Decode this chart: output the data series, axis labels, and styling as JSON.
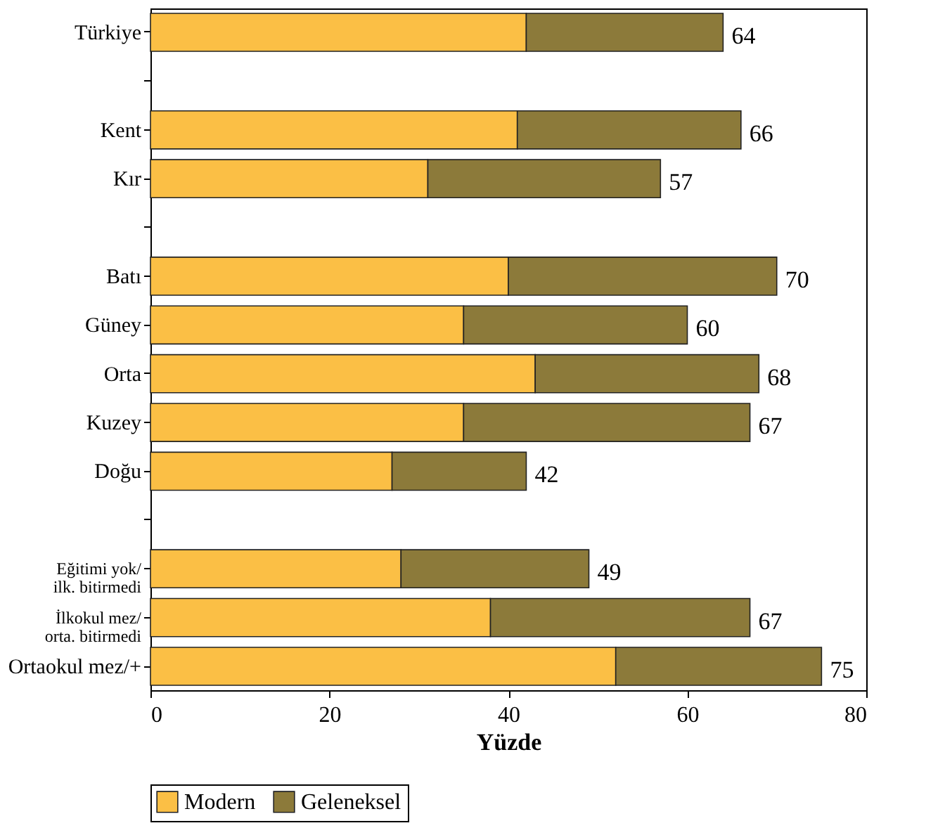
{
  "chart_data": {
    "type": "bar",
    "orientation": "horizontal",
    "stacked": true,
    "xlabel": "Yüzde",
    "categories": [
      "Türkiye",
      null,
      "Kent",
      "Kır",
      null,
      "Batı",
      "Güney",
      "Orta",
      "Kuzey",
      "Doğu",
      null,
      "Eğitimi yok/\nilk. bitirmedi",
      "İlkokul mez/\norta. bitirmedi",
      "Ortaokul mez/+"
    ],
    "series": [
      {
        "name": "Modern",
        "color": "#fbbf45",
        "values": [
          42,
          null,
          41,
          31,
          null,
          40,
          35,
          43,
          35,
          27,
          null,
          28,
          38,
          52
        ]
      },
      {
        "name": "Geleneksel",
        "color": "#8c7a3a",
        "values": [
          22,
          null,
          25,
          26,
          null,
          30,
          25,
          25,
          32,
          15,
          null,
          21,
          29,
          23
        ]
      }
    ],
    "totals": [
      "64",
      null,
      "66",
      "57",
      null,
      "70",
      "60",
      "68",
      "67",
      "42",
      null,
      "49",
      "67",
      "75"
    ],
    "xlim": [
      0,
      80
    ],
    "xticks": [
      0,
      20,
      40,
      60,
      80
    ],
    "legend": "bottom",
    "grid": false
  }
}
